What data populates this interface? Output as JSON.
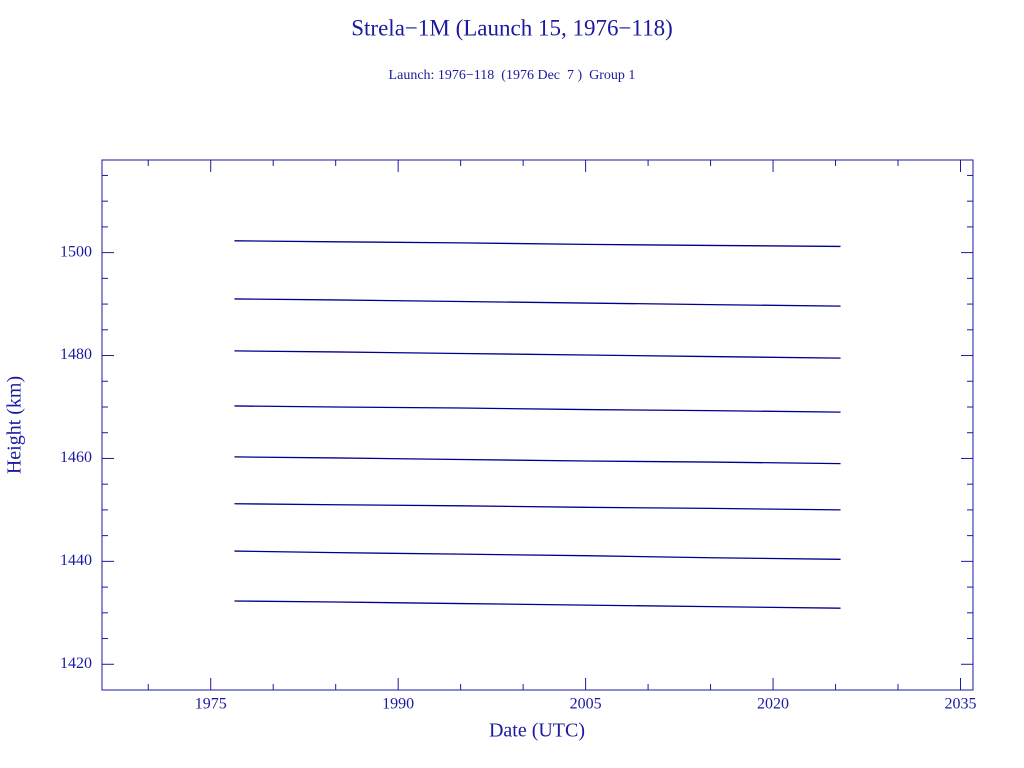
{
  "chart_data": {
    "type": "line",
    "title": "Strela−1M (Launch 15, 1976−118)",
    "subtitle": "Launch: 1976−118  (1976 Dec  7 )  Group 1",
    "x_label": "Date (UTC)",
    "y_label": "Height (km)",
    "x": [
      1976.9,
      1985,
      1995,
      2005,
      2015,
      2025.4
    ],
    "series": [
      {
        "color": "#00008b",
        "values": [
          1502.3,
          1502.1,
          1501.9,
          1501.6,
          1501.4,
          1501.2
        ]
      },
      {
        "color": "#00008b",
        "values": [
          1491.0,
          1490.8,
          1490.5,
          1490.2,
          1489.9,
          1489.6
        ]
      },
      {
        "color": "#00008b",
        "values": [
          1480.9,
          1480.7,
          1480.4,
          1480.1,
          1479.8,
          1479.5
        ]
      },
      {
        "color": "#00008b",
        "values": [
          1470.2,
          1470.0,
          1469.8,
          1469.5,
          1469.3,
          1469.0
        ]
      },
      {
        "color": "#00008b",
        "values": [
          1460.3,
          1460.1,
          1459.8,
          1459.5,
          1459.3,
          1459.0
        ]
      },
      {
        "color": "#00008b",
        "values": [
          1451.2,
          1451.0,
          1450.8,
          1450.5,
          1450.3,
          1450.0
        ]
      },
      {
        "color": "#00008b",
        "values": [
          1442.0,
          1441.7,
          1441.4,
          1441.1,
          1440.7,
          1440.4
        ]
      },
      {
        "color": "#00008b",
        "values": [
          1432.3,
          1432.1,
          1431.8,
          1431.5,
          1431.2,
          1430.9
        ]
      }
    ],
    "xlim": [
      1966.3,
      2036
    ],
    "ylim": [
      1415,
      1518
    ],
    "xticks": [
      1975,
      1990,
      2005,
      2020,
      2035
    ],
    "yticks": [
      1420,
      1440,
      1460,
      1480,
      1500
    ],
    "x_minor_ticks": [
      1970,
      1980,
      1985,
      1995,
      2000,
      2010,
      2015,
      2025,
      2030
    ],
    "y_minor_ticks": [
      1425,
      1430,
      1435,
      1445,
      1450,
      1455,
      1465,
      1470,
      1475,
      1485,
      1490,
      1495,
      1505,
      1510,
      1515
    ],
    "grid": false,
    "axis_color": "#1a1aa0"
  }
}
